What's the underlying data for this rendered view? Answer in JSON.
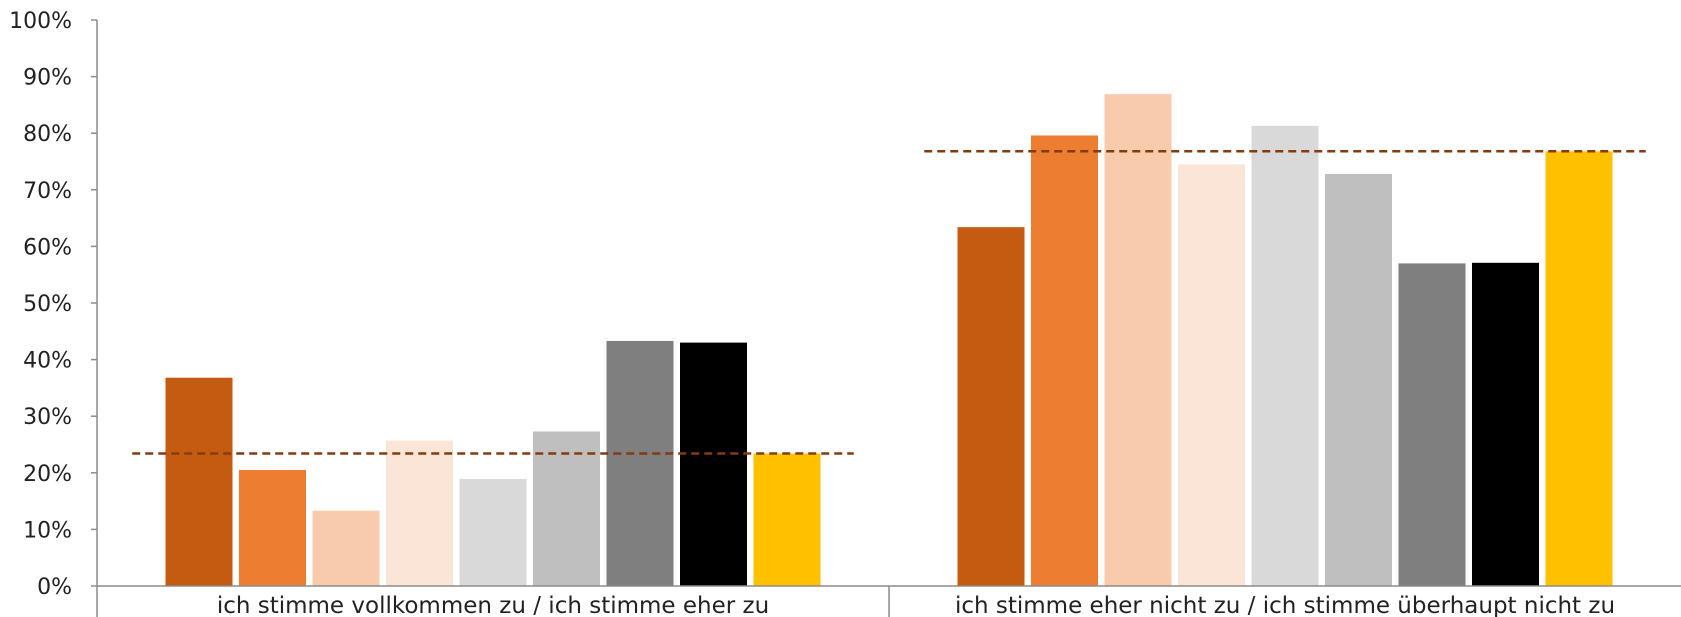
{
  "chart_data": {
    "type": "bar",
    "categories": [
      "ich stimme vollkommen zu / ich stimme eher zu",
      "ich stimme eher nicht zu / ich stimme überhaupt nicht zu"
    ],
    "series": [
      {
        "color": "#C55A11",
        "values": [
          36.8,
          63.4
        ]
      },
      {
        "color": "#ED7D31",
        "values": [
          20.5,
          79.6
        ]
      },
      {
        "color": "#F8CBAD",
        "values": [
          13.3,
          86.9
        ]
      },
      {
        "color": "#FBE5D6",
        "values": [
          25.7,
          74.5
        ]
      },
      {
        "color": "#D9D9D9",
        "values": [
          18.9,
          81.3
        ]
      },
      {
        "color": "#BFBFBF",
        "values": [
          27.3,
          72.8
        ]
      },
      {
        "color": "#7F7F7F",
        "values": [
          43.3,
          57.0
        ]
      },
      {
        "color": "#000000",
        "values": [
          43.0,
          57.1
        ]
      },
      {
        "color": "#FFC000",
        "values": [
          23.4,
          76.8
        ]
      }
    ],
    "reference_lines": [
      {
        "style": "dashed",
        "color": "#843C0C",
        "values": [
          23.4,
          76.8
        ]
      }
    ],
    "y_ticks": [
      "0%",
      "10%",
      "20%",
      "30%",
      "40%",
      "50%",
      "60%",
      "70%",
      "80%",
      "90%",
      "100%"
    ],
    "ylim": [
      0,
      100
    ],
    "title": "",
    "xlabel": "",
    "ylabel": "",
    "grid": false,
    "legend": false
  }
}
